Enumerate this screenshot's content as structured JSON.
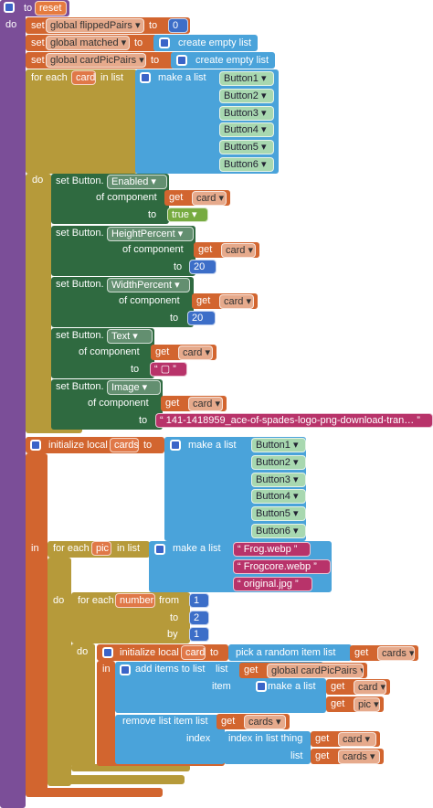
{
  "procedure": {
    "to": "to",
    "name": "reset",
    "do": "do"
  },
  "set_globals": [
    {
      "set": "set",
      "variable": "global flippedPairs ▾",
      "to": "to",
      "value": 0
    },
    {
      "set": "set",
      "variable": "global matched ▾",
      "to": "to",
      "value": "create empty list"
    },
    {
      "set": "set",
      "variable": "global cardPicPairs ▾",
      "to": "to",
      "value": "create empty list"
    }
  ],
  "for_each_card": {
    "for_each": "for each",
    "variable": "card",
    "in_list": "in list",
    "make_a_list": "make a list",
    "items": [
      "Button1 ▾",
      "Button2 ▾",
      "Button3 ▾",
      "Button4 ▾",
      "Button5 ▾",
      "Button6 ▾"
    ],
    "do": "do",
    "setters": [
      {
        "set": "set Button.",
        "property": "Enabled ▾",
        "of_component": "of component",
        "get": "get",
        "component": "card ▾",
        "to": "to",
        "value": "true ▾"
      },
      {
        "set": "set Button.",
        "property": "HeightPercent ▾",
        "of_component": "of component",
        "get": "get",
        "component": "card ▾",
        "to": "to",
        "value": 20
      },
      {
        "set": "set Button.",
        "property": "WidthPercent ▾",
        "of_component": "of component",
        "get": "get",
        "component": "card ▾",
        "to": "to",
        "value": 20
      },
      {
        "set": "set Button.",
        "property": "Text ▾",
        "of_component": "of component",
        "get": "get",
        "component": "card ▾",
        "to": "to",
        "value": "“ ▢ ”"
      },
      {
        "set": "set Button.",
        "property": "Image ▾",
        "of_component": "of component",
        "get": "get",
        "component": "card ▾",
        "to": "to",
        "value": "“ 141-1418959_ace-of-spades-logo-png-download-tran… ”"
      }
    ]
  },
  "init_cards": {
    "initialize_local": "initialize local",
    "variable": "cards",
    "to": "to",
    "make_a_list": "make a list",
    "items": [
      "Button1 ▾",
      "Button2 ▾",
      "Button3 ▾",
      "Button4 ▾",
      "Button5 ▾",
      "Button6 ▾"
    ],
    "in": "in",
    "for_each_pic": {
      "for_each": "for each",
      "variable": "pic",
      "in_list": "in list",
      "make_a_list": "make a list",
      "items": [
        "“ Frog.webp ”",
        "“ Frogcore.webp ”",
        "“ original.jpg ”"
      ],
      "do": "do",
      "for_range": {
        "for_each": "for each",
        "variable": "number",
        "from": "from",
        "from_value": 1,
        "to": "to",
        "to_value": 2,
        "by": "by",
        "by_value": 1,
        "do": "do",
        "init_card": {
          "initialize_local": "initialize local",
          "variable": "card",
          "to": "to",
          "pick_random": "pick a random item  list",
          "get": "get",
          "source": "cards ▾",
          "in": "in",
          "add_items": {
            "label": "add items to list",
            "list": "list",
            "get": "get",
            "target": "global cardPicPairs ▾",
            "item": "item",
            "make_a_list": "make a list",
            "items": [
              {
                "get": "get",
                "name": "card ▾"
              },
              {
                "get": "get",
                "name": "pic ▾"
              }
            ]
          },
          "remove": {
            "label": "remove list item  list",
            "get": "get",
            "target": "cards ▾",
            "index": "index",
            "index_in_list": "index in list  thing",
            "thing_get": "get",
            "thing": "card ▾",
            "list": "list",
            "list_get": "get",
            "list_name": "cards ▾"
          }
        }
      }
    }
  }
}
